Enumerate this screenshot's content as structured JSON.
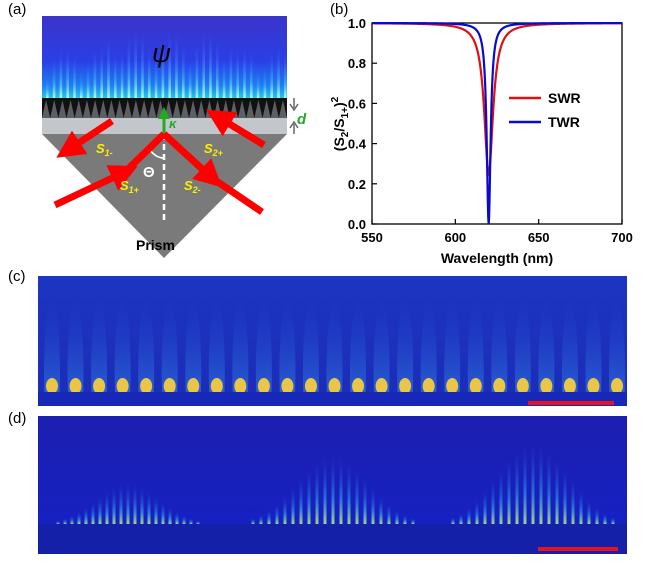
{
  "panels": {
    "a": "(a)",
    "b": "(b)",
    "c": "(c)",
    "d": "(d)"
  },
  "schematic": {
    "psi": "ψ",
    "kappa": "κ",
    "d": "d",
    "theta": "Θ",
    "prism": "Prism",
    "ports": [
      {
        "main": "S",
        "sub": "1-"
      },
      {
        "main": "S",
        "sub": "2+"
      },
      {
        "main": "S",
        "sub": "1+"
      },
      {
        "main": "S",
        "sub": "2-"
      }
    ],
    "colors": {
      "arrow": "#ff0000",
      "kappa": "#22aa22",
      "port_text": "#ffee00",
      "prism": "#7a7a7a"
    }
  },
  "chart_data": {
    "type": "line",
    "xlabel": "Wavelength (nm)",
    "ylabel_parts": [
      "(S",
      "2",
      "/S",
      "1+",
      ")",
      "2"
    ],
    "xlim": [
      550,
      700
    ],
    "ylim": [
      0.0,
      1.0
    ],
    "xticks": [
      550,
      600,
      650,
      700
    ],
    "yticks": [
      0.0,
      0.2,
      0.4,
      0.6,
      0.8,
      1.0
    ],
    "ytick_labels": [
      "0.0",
      "0.2",
      "0.4",
      "0.6",
      "0.8",
      "1.0"
    ],
    "legend_position": "right",
    "series": [
      {
        "name": "SWR",
        "color": "#dd1111",
        "center": 620,
        "min": 0.25,
        "hwhm": 3.2
      },
      {
        "name": "TWR",
        "color": "#0a0acc",
        "center": 620,
        "min": 0.0,
        "hwhm": 1.4
      }
    ]
  }
}
